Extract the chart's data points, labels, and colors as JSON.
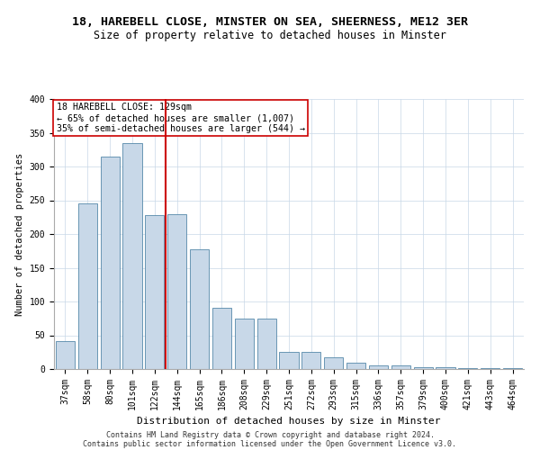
{
  "title1": "18, HAREBELL CLOSE, MINSTER ON SEA, SHEERNESS, ME12 3ER",
  "title2": "Size of property relative to detached houses in Minster",
  "xlabel": "Distribution of detached houses by size in Minster",
  "ylabel": "Number of detached properties",
  "footer1": "Contains HM Land Registry data © Crown copyright and database right 2024.",
  "footer2": "Contains public sector information licensed under the Open Government Licence v3.0.",
  "annotation_line1": "18 HAREBELL CLOSE: 129sqm",
  "annotation_line2": "← 65% of detached houses are smaller (1,007)",
  "annotation_line3": "35% of semi-detached houses are larger (544) →",
  "bar_color": "#c8d8e8",
  "bar_edge_color": "#5588aa",
  "ref_line_color": "#cc0000",
  "annotation_box_color": "#cc0000",
  "categories": [
    "37sqm",
    "58sqm",
    "80sqm",
    "101sqm",
    "122sqm",
    "144sqm",
    "165sqm",
    "186sqm",
    "208sqm",
    "229sqm",
    "251sqm",
    "272sqm",
    "293sqm",
    "315sqm",
    "336sqm",
    "357sqm",
    "379sqm",
    "400sqm",
    "421sqm",
    "443sqm",
    "464sqm"
  ],
  "values": [
    42,
    245,
    315,
    335,
    228,
    230,
    178,
    91,
    75,
    75,
    26,
    26,
    18,
    10,
    5,
    5,
    3,
    3,
    2,
    2,
    2
  ],
  "ref_bar_index": 4,
  "ylim": [
    0,
    400
  ],
  "yticks": [
    0,
    50,
    100,
    150,
    200,
    250,
    300,
    350,
    400
  ],
  "title1_fontsize": 9.5,
  "title2_fontsize": 8.5,
  "tick_fontsize": 7.0,
  "ylabel_fontsize": 7.5,
  "xlabel_fontsize": 8.0,
  "footer_fontsize": 6.0,
  "annotation_fontsize": 7.2
}
